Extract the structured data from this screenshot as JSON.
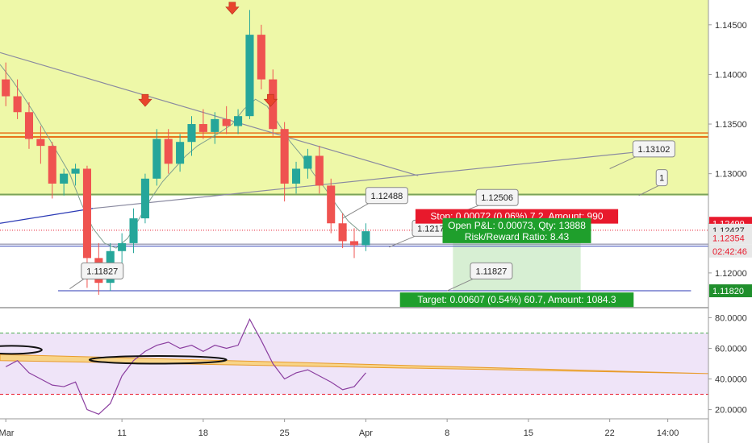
{
  "chart_data": [
    {
      "type": "candlestick",
      "ylim": [
        1.1165,
        1.1475
      ],
      "yticks": [
        "1.14500",
        "1.14000",
        "1.13500",
        "1.13000",
        "1.12500",
        "1.12000"
      ],
      "xlim": [
        0,
        61
      ],
      "xticks": [
        {
          "label": "Mar",
          "x": 0
        },
        {
          "label": "11",
          "x": 10
        },
        {
          "label": "18",
          "x": 17
        },
        {
          "label": "25",
          "x": 24
        },
        {
          "label": "Apr",
          "x": 31
        },
        {
          "label": "8",
          "x": 38
        },
        {
          "label": "15",
          "x": 45
        },
        {
          "label": "22",
          "x": 52
        },
        {
          "label": "14:00",
          "x": 57
        }
      ],
      "candles": [
        {
          "x": 0,
          "o": 1.1395,
          "h": 1.1412,
          "l": 1.1368,
          "c": 1.1378
        },
        {
          "x": 1,
          "o": 1.1378,
          "h": 1.1395,
          "l": 1.1355,
          "c": 1.1362
        },
        {
          "x": 2,
          "o": 1.1362,
          "h": 1.1372,
          "l": 1.1325,
          "c": 1.1335
        },
        {
          "x": 3,
          "o": 1.1335,
          "h": 1.1348,
          "l": 1.131,
          "c": 1.1328
        },
        {
          "x": 4,
          "o": 1.1328,
          "h": 1.1332,
          "l": 1.1275,
          "c": 1.129
        },
        {
          "x": 5,
          "o": 1.129,
          "h": 1.1305,
          "l": 1.1278,
          "c": 1.13
        },
        {
          "x": 6,
          "o": 1.13,
          "h": 1.131,
          "l": 1.1288,
          "c": 1.1305
        },
        {
          "x": 7,
          "o": 1.1305,
          "h": 1.1308,
          "l": 1.1185,
          "c": 1.1215
        },
        {
          "x": 8,
          "o": 1.1215,
          "h": 1.123,
          "l": 1.1178,
          "c": 1.119
        },
        {
          "x": 9,
          "o": 1.119,
          "h": 1.123,
          "l": 1.1182,
          "c": 1.1222
        },
        {
          "x": 10,
          "o": 1.1222,
          "h": 1.124,
          "l": 1.1205,
          "c": 1.123
        },
        {
          "x": 11,
          "o": 1.123,
          "h": 1.1265,
          "l": 1.122,
          "c": 1.1255
        },
        {
          "x": 12,
          "o": 1.1255,
          "h": 1.13,
          "l": 1.125,
          "c": 1.1295
        },
        {
          "x": 13,
          "o": 1.1295,
          "h": 1.1345,
          "l": 1.1288,
          "c": 1.1335
        },
        {
          "x": 14,
          "o": 1.1335,
          "h": 1.1345,
          "l": 1.13,
          "c": 1.131
        },
        {
          "x": 15,
          "o": 1.131,
          "h": 1.134,
          "l": 1.1302,
          "c": 1.1332
        },
        {
          "x": 16,
          "o": 1.1332,
          "h": 1.1358,
          "l": 1.1318,
          "c": 1.135
        },
        {
          "x": 17,
          "o": 1.135,
          "h": 1.1365,
          "l": 1.1335,
          "c": 1.1342
        },
        {
          "x": 18,
          "o": 1.1342,
          "h": 1.1362,
          "l": 1.133,
          "c": 1.1355
        },
        {
          "x": 19,
          "o": 1.1355,
          "h": 1.1368,
          "l": 1.134,
          "c": 1.1348
        },
        {
          "x": 20,
          "o": 1.1348,
          "h": 1.1365,
          "l": 1.134,
          "c": 1.1358
        },
        {
          "x": 21,
          "o": 1.1358,
          "h": 1.1465,
          "l": 1.1355,
          "c": 1.144
        },
        {
          "x": 22,
          "o": 1.144,
          "h": 1.145,
          "l": 1.1385,
          "c": 1.1395
        },
        {
          "x": 23,
          "o": 1.1395,
          "h": 1.1405,
          "l": 1.1338,
          "c": 1.1345
        },
        {
          "x": 24,
          "o": 1.1345,
          "h": 1.1352,
          "l": 1.1272,
          "c": 1.129
        },
        {
          "x": 25,
          "o": 1.129,
          "h": 1.1312,
          "l": 1.128,
          "c": 1.1305
        },
        {
          "x": 26,
          "o": 1.1305,
          "h": 1.1325,
          "l": 1.1295,
          "c": 1.1318
        },
        {
          "x": 27,
          "o": 1.1318,
          "h": 1.1328,
          "l": 1.128,
          "c": 1.1288
        },
        {
          "x": 28,
          "o": 1.1288,
          "h": 1.1295,
          "l": 1.124,
          "c": 1.125
        },
        {
          "x": 29,
          "o": 1.125,
          "h": 1.126,
          "l": 1.1225,
          "c": 1.1232
        },
        {
          "x": 30,
          "o": 1.1232,
          "h": 1.1245,
          "l": 1.1215,
          "c": 1.1228
        },
        {
          "x": 31,
          "o": 1.1228,
          "h": 1.125,
          "l": 1.1222,
          "c": 1.1242
        }
      ],
      "sma": [
        {
          "x": 0,
          "y": 1.141
        },
        {
          "x": 1,
          "y": 1.1395
        },
        {
          "x": 2,
          "y": 1.1378
        },
        {
          "x": 3,
          "y": 1.136
        },
        {
          "x": 4,
          "y": 1.134
        },
        {
          "x": 5,
          "y": 1.132
        },
        {
          "x": 6,
          "y": 1.13
        },
        {
          "x": 7,
          "y": 1.127
        },
        {
          "x": 8,
          "y": 1.1245
        },
        {
          "x": 9,
          "y": 1.123
        },
        {
          "x": 10,
          "y": 1.1225
        },
        {
          "x": 11,
          "y": 1.1235
        },
        {
          "x": 12,
          "y": 1.1255
        },
        {
          "x": 13,
          "y": 1.1275
        },
        {
          "x": 14,
          "y": 1.1292
        },
        {
          "x": 15,
          "y": 1.1305
        },
        {
          "x": 16,
          "y": 1.1318
        },
        {
          "x": 17,
          "y": 1.1328
        },
        {
          "x": 18,
          "y": 1.1335
        },
        {
          "x": 19,
          "y": 1.1342
        },
        {
          "x": 20,
          "y": 1.135
        },
        {
          "x": 21,
          "y": 1.1365
        },
        {
          "x": 22,
          "y": 1.1375
        },
        {
          "x": 23,
          "y": 1.1368
        },
        {
          "x": 24,
          "y": 1.135
        },
        {
          "x": 25,
          "y": 1.1332
        },
        {
          "x": 26,
          "y": 1.1318
        },
        {
          "x": 27,
          "y": 1.13
        },
        {
          "x": 28,
          "y": 1.1285
        },
        {
          "x": 29,
          "y": 1.1268
        },
        {
          "x": 30,
          "y": 1.1252
        },
        {
          "x": 31,
          "y": 1.1242
        }
      ],
      "zones": {
        "upper_band": {
          "from": 1.1278,
          "to": 1.1475,
          "color": "#eef8a8"
        },
        "resistance": [
          1.1337,
          1.1341
        ],
        "green_line": 1.1279,
        "blue_line": 1.1227,
        "stop_line": 1.1229,
        "target_line": 1.1182
      },
      "trendlines": [
        {
          "from": {
            "x": 0,
            "y": 1.1422
          },
          "to": {
            "x": 36,
            "y": 1.1298
          },
          "color": "#8a8aa0"
        },
        {
          "from": {
            "x": 0,
            "y": 1.125
          },
          "to": {
            "x": 8,
            "y": 1.1265
          },
          "color": "#2b3ab5"
        },
        {
          "from": {
            "x": 8,
            "y": 1.1265
          },
          "to": {
            "x": 55,
            "y": 1.1322
          },
          "color": "#8a8aa0"
        }
      ],
      "arrows": [
        {
          "x": 20,
          "y": 1.1468
        },
        {
          "x": 12.5,
          "y": 1.1375
        },
        {
          "x": 23.3,
          "y": 1.1375
        }
      ],
      "callouts": [
        {
          "text": "1.11827",
          "anchor": {
            "x": 6,
            "y": 1.1184
          },
          "box": {
            "x": 7,
            "y": 1.1202
          }
        },
        {
          "text": "1.12488",
          "anchor": {
            "x": 29.5,
            "y": 1.1255
          },
          "box": {
            "x": 31.5,
            "y": 1.1278
          }
        },
        {
          "text": "1.12506",
          "anchor": {
            "x": 39,
            "y": 1.1258
          },
          "box": {
            "x": 41,
            "y": 1.1276
          }
        },
        {
          "text": "1.12175",
          "anchor": {
            "x": 33.5,
            "y": 1.1226
          },
          "box": {
            "x": 35.5,
            "y": 1.1245
          }
        },
        {
          "text": "1.11827",
          "anchor": {
            "x": 38.5,
            "y": 1.1182
          },
          "box": {
            "x": 40.5,
            "y": 1.1202
          }
        },
        {
          "text": "1.13102",
          "anchor": {
            "x": 52.5,
            "y": 1.1305
          },
          "box": {
            "x": 54.5,
            "y": 1.1325
          }
        },
        {
          "text": "1",
          "anchor": {
            "x": 55,
            "y": 1.1278
          },
          "box": {
            "x": 56.5,
            "y": 1.1296
          }
        }
      ],
      "position": {
        "x_from": 39,
        "x_to": 50,
        "stop_label": "Stop: 0.00072 (0.06%) 7.2, Amount: 990",
        "pnl_label": "Open P&L: 0.00073, Qty: 13888",
        "rr_label": "Risk/Reward Ratio: 8.43",
        "target_label": "Target: 0.00607 (0.54%) 60.7, Amount: 1084.3"
      },
      "price_tags": [
        {
          "text": "1.12499",
          "y": 1.125,
          "bg": "#e8192c",
          "fg": "#ffffff"
        },
        {
          "text": "1.12427",
          "y": 1.1243,
          "bg": "#e8e8e8",
          "fg": "#222222"
        },
        {
          "text": "1.12354",
          "y": 1.1235,
          "bg": "#e8e8e8",
          "fg": "#e8192c"
        },
        {
          "text": "02:42:46",
          "y": 1.1222,
          "bg": "#e8e8e8",
          "fg": "#e8192c"
        },
        {
          "text": "1.11820",
          "y": 1.1182,
          "bg": "#1f8f2c",
          "fg": "#ffffff"
        }
      ]
    },
    {
      "type": "line",
      "ylim": [
        14,
        86
      ],
      "yticks": [
        "80.0000",
        "60.0000",
        "40.0000",
        "20.0000"
      ],
      "bands": [
        30,
        70
      ],
      "series": [
        {
          "values": [
            {
              "x": 0,
              "y": 48
            },
            {
              "x": 1,
              "y": 52
            },
            {
              "x": 2,
              "y": 44
            },
            {
              "x": 3,
              "y": 40
            },
            {
              "x": 4,
              "y": 36
            },
            {
              "x": 5,
              "y": 35
            },
            {
              "x": 6,
              "y": 38
            },
            {
              "x": 7,
              "y": 20
            },
            {
              "x": 8,
              "y": 17
            },
            {
              "x": 9,
              "y": 24
            },
            {
              "x": 10,
              "y": 42
            },
            {
              "x": 11,
              "y": 52
            },
            {
              "x": 12,
              "y": 58
            },
            {
              "x": 13,
              "y": 62
            },
            {
              "x": 14,
              "y": 64
            },
            {
              "x": 15,
              "y": 60
            },
            {
              "x": 16,
              "y": 62
            },
            {
              "x": 17,
              "y": 58
            },
            {
              "x": 18,
              "y": 62
            },
            {
              "x": 19,
              "y": 60
            },
            {
              "x": 20,
              "y": 62
            },
            {
              "x": 21,
              "y": 79
            },
            {
              "x": 22,
              "y": 65
            },
            {
              "x": 23,
              "y": 50
            },
            {
              "x": 24,
              "y": 40
            },
            {
              "x": 25,
              "y": 44
            },
            {
              "x": 26,
              "y": 46
            },
            {
              "x": 27,
              "y": 42
            },
            {
              "x": 28,
              "y": 38
            },
            {
              "x": 29,
              "y": 33
            },
            {
              "x": 30,
              "y": 35
            },
            {
              "x": 31,
              "y": 44
            }
          ]
        }
      ],
      "triangle": [
        {
          "x": 0,
          "y": 56
        },
        {
          "x": 61,
          "y": 43.5
        },
        {
          "x": 0,
          "y": 52
        }
      ],
      "ellipses": [
        {
          "cx": 1,
          "cy": 59,
          "rx": 2.6,
          "ry": 2.6
        },
        {
          "cx": 13.6,
          "cy": 52.5,
          "rx": 5.9,
          "ry": 2.5
        }
      ]
    }
  ]
}
